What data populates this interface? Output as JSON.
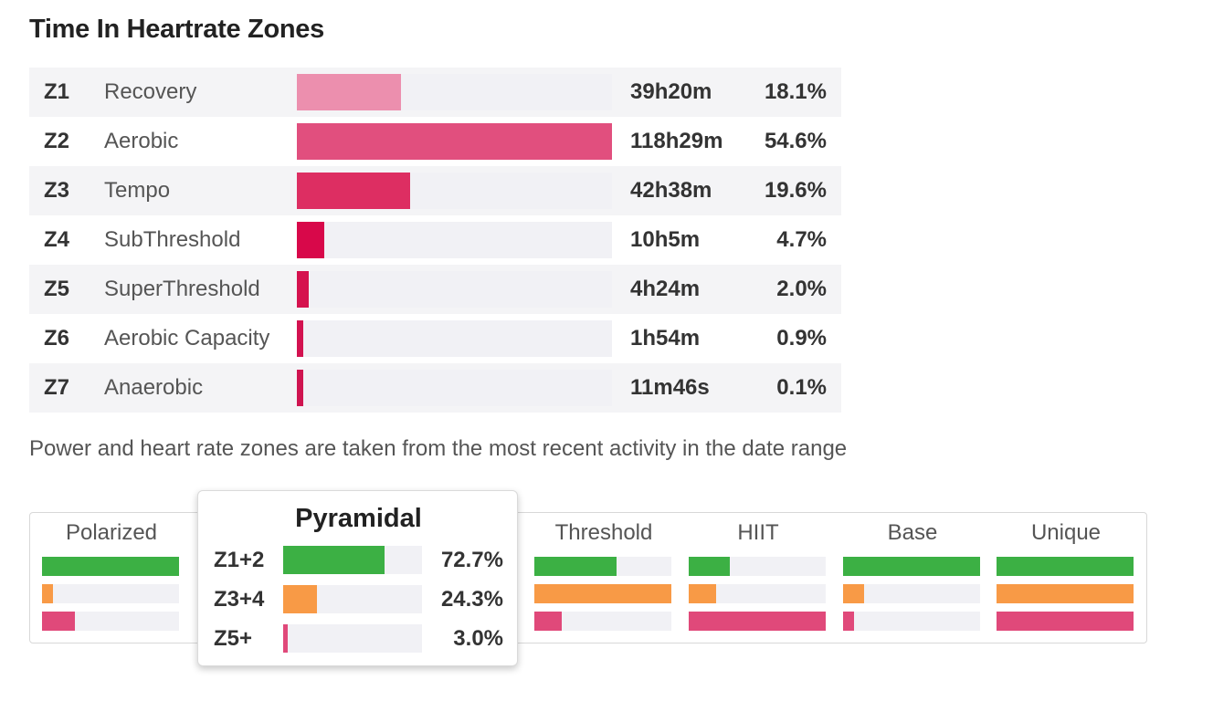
{
  "title": "Time In Heartrate Zones",
  "zones": [
    {
      "id": "Z1",
      "name": "Recovery",
      "time": "39h20m",
      "pct": "18.1%",
      "fraction": 0.181,
      "color": "#ec8fae"
    },
    {
      "id": "Z2",
      "name": "Aerobic",
      "time": "118h29m",
      "pct": "54.6%",
      "fraction": 0.546,
      "color": "#e14f7e"
    },
    {
      "id": "Z3",
      "name": "Tempo",
      "time": "42h38m",
      "pct": "19.6%",
      "fraction": 0.196,
      "color": "#dd2e62"
    },
    {
      "id": "Z4",
      "name": "SubThreshold",
      "time": "10h5m",
      "pct": "4.7%",
      "fraction": 0.047,
      "color": "#d8084a"
    },
    {
      "id": "Z5",
      "name": "SuperThreshold",
      "time": "4h24m",
      "pct": "2.0%",
      "fraction": 0.02,
      "color": "#d5124e"
    },
    {
      "id": "Z6",
      "name": "Aerobic Capacity",
      "time": "1h54m",
      "pct": "0.9%",
      "fraction": 0.009,
      "color": "#d31250"
    },
    {
      "id": "Z7",
      "name": "Anaerobic",
      "time": "11m46s",
      "pct": "0.1%",
      "fraction": 0.001,
      "color": "#cf1450"
    }
  ],
  "note": "Power and heart rate zones are taken from the most recent activity in the date range",
  "colors": {
    "low": "#3cb044",
    "mid": "#f89a46",
    "high": "#e0497a"
  },
  "distributions": [
    {
      "label": "Polarized",
      "levels": [
        1.0,
        0.08,
        0.24
      ]
    },
    {
      "label": "Pyramidal",
      "levels": [
        1.0,
        0.33,
        0.04
      ]
    },
    {
      "label": "Threshold",
      "levels": [
        0.6,
        1.0,
        0.2
      ]
    },
    {
      "label": "HIIT",
      "levels": [
        0.3,
        0.2,
        1.0
      ]
    },
    {
      "label": "Base",
      "levels": [
        1.0,
        0.15,
        0.08
      ]
    },
    {
      "label": "Unique",
      "levels": [
        1.0,
        1.0,
        1.0
      ]
    }
  ],
  "popup": {
    "title": "Pyramidal",
    "rows": [
      {
        "label": "Z1+2",
        "pct": "72.7%",
        "fraction": 0.727,
        "color": "#3cb044"
      },
      {
        "label": "Z3+4",
        "pct": "24.3%",
        "fraction": 0.243,
        "color": "#f89a46"
      },
      {
        "label": "Z5+",
        "pct": "3.0%",
        "fraction": 0.03,
        "color": "#e0497a"
      }
    ]
  }
}
